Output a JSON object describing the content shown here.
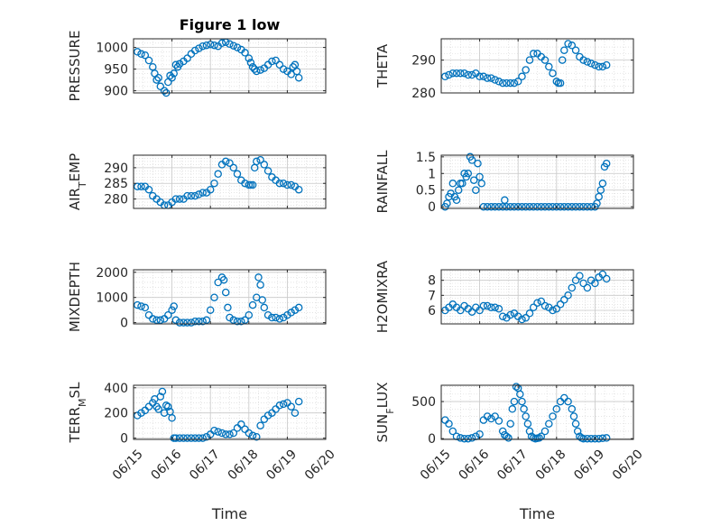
{
  "chart_data": [
    {
      "type": "scatter",
      "title": "Figure 1 low",
      "xlabel": "",
      "ylabel": "PRESSURE",
      "xlim": [
        "06/15",
        "06/20"
      ],
      "ylim": [
        895,
        1020
      ],
      "yticks": [
        "900",
        "950",
        "1000"
      ],
      "xticklabels": [],
      "grid": true,
      "marker_color": "#0072BD",
      "x": [
        0.1,
        0.2,
        0.3,
        0.4,
        0.5,
        0.55,
        0.6,
        0.65,
        0.7,
        0.8,
        0.85,
        0.9,
        0.95,
        1.0,
        1.05,
        1.1,
        1.15,
        1.2,
        1.3,
        1.4,
        1.5,
        1.6,
        1.7,
        1.8,
        1.9,
        2.0,
        2.1,
        2.2,
        2.3,
        2.4,
        2.5,
        2.6,
        2.7,
        2.8,
        2.9,
        3.0,
        3.05,
        3.1,
        3.15,
        3.2,
        3.3,
        3.4,
        3.5,
        3.6,
        3.7,
        3.8,
        3.9,
        4.0,
        4.1,
        4.15,
        4.2,
        4.25,
        4.3
      ],
      "y": [
        990,
        985,
        982,
        970,
        955,
        940,
        925,
        930,
        910,
        900,
        895,
        920,
        935,
        930,
        940,
        960,
        955,
        962,
        968,
        975,
        985,
        993,
        998,
        1003,
        1005,
        1007,
        1005,
        1003,
        1010,
        1012,
        1008,
        1004,
        1000,
        995,
        988,
        975,
        965,
        955,
        950,
        945,
        948,
        952,
        960,
        968,
        970,
        960,
        950,
        945,
        938,
        955,
        960,
        945,
        930
      ]
    },
    {
      "type": "scatter",
      "title": "",
      "xlabel": "",
      "ylabel": "THETA",
      "xlim": [
        "06/15",
        "06/20"
      ],
      "ylim": [
        280,
        296.5
      ],
      "yticks": [
        "280",
        "290"
      ],
      "xticklabels": [],
      "grid": true,
      "marker_color": "#0072BD",
      "x": [
        0.1,
        0.2,
        0.3,
        0.4,
        0.5,
        0.6,
        0.7,
        0.8,
        0.9,
        1.0,
        1.1,
        1.2,
        1.3,
        1.4,
        1.5,
        1.6,
        1.7,
        1.8,
        1.9,
        2.0,
        2.1,
        2.2,
        2.3,
        2.4,
        2.5,
        2.6,
        2.7,
        2.8,
        2.9,
        3.0,
        3.05,
        3.1,
        3.15,
        3.2,
        3.3,
        3.4,
        3.5,
        3.6,
        3.7,
        3.8,
        3.9,
        4.0,
        4.1,
        4.2,
        4.3
      ],
      "y": [
        285,
        285.5,
        286,
        286,
        286,
        286,
        285.5,
        285.5,
        286,
        285,
        285,
        284.5,
        284.5,
        284,
        283.5,
        283,
        283,
        283,
        283,
        283.5,
        285,
        287,
        290,
        292,
        292,
        291,
        290,
        288,
        286,
        283.5,
        283,
        283,
        290,
        293,
        295,
        294.5,
        293,
        291,
        290,
        289.5,
        289,
        288.5,
        288,
        288,
        288.5
      ]
    },
    {
      "type": "scatter",
      "title": "",
      "xlabel": "",
      "ylabel": "AIR_TEMP",
      "xlim": [
        "06/15",
        "06/20"
      ],
      "ylim": [
        277,
        294
      ],
      "yticks": [
        "280",
        "285",
        "290"
      ],
      "xticklabels": [],
      "grid": true,
      "marker_color": "#0072BD",
      "x": [
        0.1,
        0.2,
        0.3,
        0.4,
        0.5,
        0.6,
        0.7,
        0.8,
        0.9,
        1.0,
        1.1,
        1.2,
        1.3,
        1.4,
        1.5,
        1.6,
        1.7,
        1.8,
        1.9,
        2.0,
        2.1,
        2.2,
        2.3,
        2.4,
        2.5,
        2.6,
        2.7,
        2.8,
        2.9,
        3.0,
        3.05,
        3.1,
        3.15,
        3.2,
        3.3,
        3.4,
        3.5,
        3.6,
        3.7,
        3.8,
        3.9,
        4.0,
        4.1,
        4.2,
        4.3
      ],
      "y": [
        284,
        284,
        284,
        283,
        281,
        280,
        279,
        278,
        278,
        279,
        280,
        280,
        280,
        281,
        281,
        281,
        281.5,
        282,
        282,
        283,
        285,
        288,
        291,
        292,
        291.5,
        290,
        288,
        286,
        285,
        284.5,
        284.5,
        284.5,
        290,
        292,
        292.5,
        291,
        289,
        287,
        286,
        285,
        285,
        284.5,
        284.5,
        284,
        283
      ]
    },
    {
      "type": "scatter",
      "title": "",
      "xlabel": "",
      "ylabel": "RAINFALL",
      "xlim": [
        "06/15",
        "06/20"
      ],
      "ylim": [
        -0.05,
        1.55
      ],
      "yticks": [
        "0",
        "0.5",
        "1",
        "1.5"
      ],
      "xticklabels": [],
      "grid": true,
      "marker_color": "#0072BD",
      "x": [
        0.1,
        0.15,
        0.2,
        0.25,
        0.3,
        0.35,
        0.4,
        0.45,
        0.5,
        0.55,
        0.6,
        0.65,
        0.7,
        0.75,
        0.8,
        0.85,
        0.9,
        0.95,
        1.0,
        1.05,
        1.1,
        1.2,
        1.3,
        1.4,
        1.5,
        1.6,
        1.65,
        1.7,
        1.8,
        1.9,
        2.0,
        2.1,
        2.2,
        2.3,
        2.4,
        2.5,
        2.6,
        2.7,
        2.8,
        2.9,
        3.0,
        3.1,
        3.2,
        3.3,
        3.4,
        3.5,
        3.6,
        3.7,
        3.8,
        3.9,
        4.0,
        4.05,
        4.1,
        4.15,
        4.2,
        4.25,
        4.3
      ],
      "y": [
        0,
        0.1,
        0.3,
        0.4,
        0.7,
        0.3,
        0.2,
        0.5,
        0.7,
        0.7,
        1.0,
        0.9,
        1.0,
        1.5,
        1.4,
        0.8,
        0.5,
        1.3,
        0.9,
        0.7,
        0,
        0,
        0,
        0,
        0,
        0,
        0.2,
        0,
        0,
        0,
        0,
        0,
        0,
        0,
        0,
        0,
        0,
        0,
        0,
        0,
        0,
        0,
        0,
        0,
        0,
        0,
        0,
        0,
        0,
        0,
        0,
        0.1,
        0.3,
        0.5,
        0.7,
        1.2,
        1.3
      ]
    },
    {
      "type": "scatter",
      "title": "",
      "xlabel": "",
      "ylabel": "MIXDEPTH",
      "xlim": [
        "06/15",
        "06/20"
      ],
      "ylim": [
        -50,
        2100
      ],
      "yticks": [
        "0",
        "1000",
        "2000"
      ],
      "xticklabels": [],
      "grid": true,
      "marker_color": "#0072BD",
      "x": [
        0.1,
        0.2,
        0.3,
        0.4,
        0.5,
        0.6,
        0.7,
        0.8,
        0.9,
        1.0,
        1.05,
        1.1,
        1.2,
        1.3,
        1.4,
        1.5,
        1.6,
        1.7,
        1.8,
        1.9,
        2.0,
        2.1,
        2.2,
        2.3,
        2.35,
        2.4,
        2.45,
        2.5,
        2.6,
        2.7,
        2.8,
        2.9,
        3.0,
        3.1,
        3.2,
        3.25,
        3.3,
        3.35,
        3.4,
        3.5,
        3.6,
        3.7,
        3.8,
        3.9,
        4.0,
        4.1,
        4.2,
        4.3
      ],
      "y": [
        700,
        650,
        600,
        300,
        150,
        100,
        100,
        150,
        300,
        500,
        650,
        100,
        0,
        0,
        0,
        0,
        50,
        50,
        50,
        100,
        500,
        1000,
        1600,
        1800,
        1700,
        1200,
        600,
        200,
        100,
        50,
        50,
        100,
        300,
        700,
        1000,
        1800,
        1500,
        900,
        600,
        300,
        200,
        200,
        150,
        200,
        300,
        400,
        500,
        600
      ]
    },
    {
      "type": "scatter",
      "title": "",
      "xlabel": "",
      "ylabel": "H2OMIXRA",
      "xlim": [
        "06/15",
        "06/20"
      ],
      "ylim": [
        5.1,
        8.7
      ],
      "yticks": [
        "6",
        "7",
        "8"
      ],
      "xticklabels": [],
      "grid": true,
      "marker_color": "#0072BD",
      "x": [
        0.1,
        0.2,
        0.3,
        0.4,
        0.5,
        0.6,
        0.7,
        0.8,
        0.9,
        1.0,
        1.1,
        1.2,
        1.3,
        1.4,
        1.5,
        1.6,
        1.7,
        1.8,
        1.9,
        2.0,
        2.1,
        2.2,
        2.3,
        2.4,
        2.5,
        2.6,
        2.7,
        2.8,
        2.9,
        3.0,
        3.1,
        3.2,
        3.3,
        3.4,
        3.5,
        3.6,
        3.7,
        3.8,
        3.9,
        4.0,
        4.1,
        4.2,
        4.3
      ],
      "y": [
        6,
        6.2,
        6.4,
        6.2,
        6,
        6.3,
        6.1,
        5.9,
        6.2,
        6,
        6.3,
        6.3,
        6.2,
        6.2,
        6.1,
        5.6,
        5.5,
        5.7,
        5.8,
        5.6,
        5.4,
        5.5,
        5.8,
        6.2,
        6.5,
        6.6,
        6.3,
        6.2,
        6.0,
        6.1,
        6.4,
        6.7,
        7.0,
        7.5,
        8.0,
        8.3,
        7.8,
        7.5,
        8.0,
        7.8,
        8.2,
        8.4,
        8.1
      ]
    },
    {
      "type": "scatter",
      "title": "",
      "xlabel": "Time",
      "ylabel": "TERR_MSL",
      "xlim": [
        "06/15",
        "06/20"
      ],
      "ylim": [
        -10,
        420
      ],
      "yticks": [
        "0",
        "200",
        "400"
      ],
      "xticklabels": [
        "06/15",
        "06/16",
        "06/17",
        "06/18",
        "06/19",
        "06/20"
      ],
      "grid": true,
      "marker_color": "#0072BD",
      "x": [
        0.1,
        0.2,
        0.3,
        0.4,
        0.5,
        0.55,
        0.6,
        0.65,
        0.7,
        0.75,
        0.8,
        0.85,
        0.9,
        0.95,
        1.0,
        1.05,
        1.1,
        1.2,
        1.3,
        1.4,
        1.5,
        1.6,
        1.7,
        1.8,
        1.9,
        2.0,
        2.1,
        2.2,
        2.3,
        2.4,
        2.5,
        2.6,
        2.7,
        2.8,
        2.9,
        3.0,
        3.1,
        3.2,
        3.3,
        3.4,
        3.5,
        3.6,
        3.7,
        3.8,
        3.9,
        4.0,
        4.1,
        4.2,
        4.3
      ],
      "y": [
        180,
        200,
        220,
        250,
        280,
        310,
        250,
        230,
        330,
        370,
        200,
        260,
        250,
        210,
        160,
        0,
        0,
        0,
        0,
        0,
        0,
        0,
        0,
        0,
        10,
        30,
        60,
        50,
        40,
        30,
        30,
        40,
        80,
        110,
        70,
        40,
        20,
        10,
        100,
        150,
        180,
        200,
        230,
        260,
        270,
        280,
        250,
        200,
        290
      ]
    },
    {
      "type": "scatter",
      "title": "",
      "xlabel": "Time",
      "ylabel": "SUN_FLUX",
      "xlim": [
        "06/15",
        "06/20"
      ],
      "ylim": [
        -10,
        720
      ],
      "yticks": [
        "0",
        "500"
      ],
      "xticklabels": [
        "06/15",
        "06/16",
        "06/17",
        "06/18",
        "06/19",
        "06/20"
      ],
      "grid": true,
      "marker_color": "#0072BD",
      "x": [
        0.1,
        0.2,
        0.3,
        0.4,
        0.5,
        0.6,
        0.7,
        0.8,
        0.9,
        1.0,
        1.1,
        1.2,
        1.3,
        1.4,
        1.5,
        1.6,
        1.65,
        1.7,
        1.75,
        1.8,
        1.85,
        1.9,
        1.95,
        2.0,
        2.05,
        2.1,
        2.15,
        2.2,
        2.25,
        2.3,
        2.35,
        2.4,
        2.45,
        2.5,
        2.55,
        2.6,
        2.7,
        2.8,
        2.9,
        3.0,
        3.1,
        3.2,
        3.3,
        3.4,
        3.45,
        3.5,
        3.55,
        3.6,
        3.65,
        3.7,
        3.8,
        3.9,
        4.0,
        4.1,
        4.2,
        4.3
      ],
      "y": [
        250,
        200,
        100,
        30,
        10,
        0,
        0,
        10,
        30,
        60,
        250,
        300,
        270,
        300,
        240,
        100,
        50,
        30,
        10,
        200,
        400,
        500,
        700,
        680,
        600,
        500,
        400,
        300,
        200,
        100,
        30,
        10,
        0,
        5,
        10,
        30,
        100,
        200,
        300,
        400,
        500,
        550,
        500,
        400,
        300,
        200,
        100,
        30,
        10,
        0,
        0,
        0,
        0,
        0,
        5,
        10
      ]
    }
  ]
}
